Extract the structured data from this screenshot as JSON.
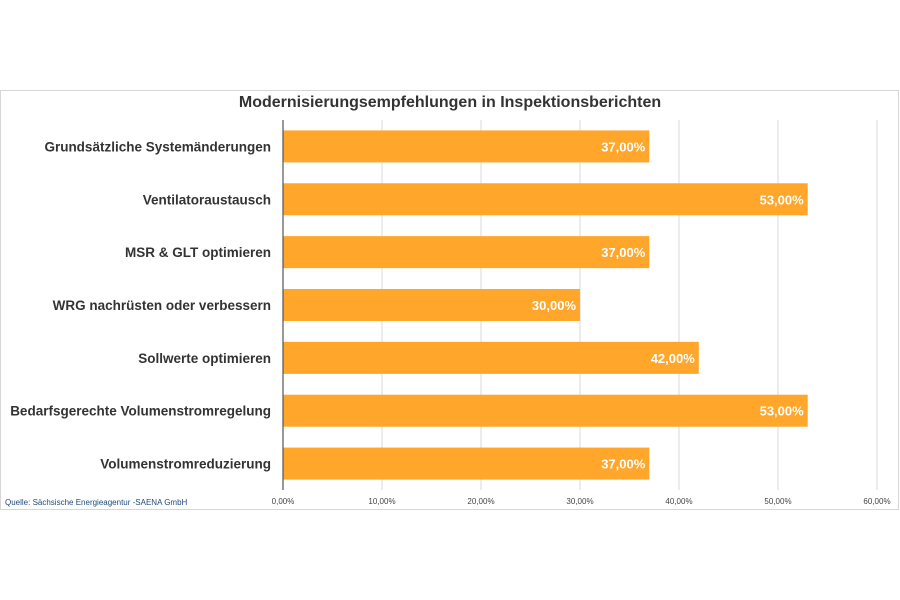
{
  "source_note": "Quelle: Sächsische Energieagentur -SAENA GmbH",
  "colors": {
    "bar": "#ffa62b",
    "grid": "#d9d9d9",
    "axis": "#555555",
    "label_text": "#333333",
    "value_text": "#ffffff"
  },
  "chart_data": {
    "type": "bar",
    "orientation": "horizontal",
    "title": "Modernisierungsempfehlungen in Inspektionsberichten",
    "categories": [
      "Grundsätzliche Systemänderungen",
      "Ventilatoraustausch",
      "MSR & GLT optimieren",
      "WRG nachrüsten oder verbessern",
      "Sollwerte optimieren",
      "Bedarfsgerechte Volumenstromregelung",
      "Volumenstromreduzierung"
    ],
    "values": [
      37,
      53,
      37,
      30,
      42,
      53,
      37
    ],
    "value_labels": [
      "37,00%",
      "53,00%",
      "37,00%",
      "30,00%",
      "42,00%",
      "53,00%",
      "37,00%"
    ],
    "xlim": [
      0,
      60
    ],
    "x_ticks": [
      0,
      10,
      20,
      30,
      40,
      50,
      60
    ],
    "x_tick_labels": [
      "0,00%",
      "10,00%",
      "20,00%",
      "30,00%",
      "40,00%",
      "50,00%",
      "60,00%"
    ],
    "grid": true,
    "legend": "none"
  }
}
